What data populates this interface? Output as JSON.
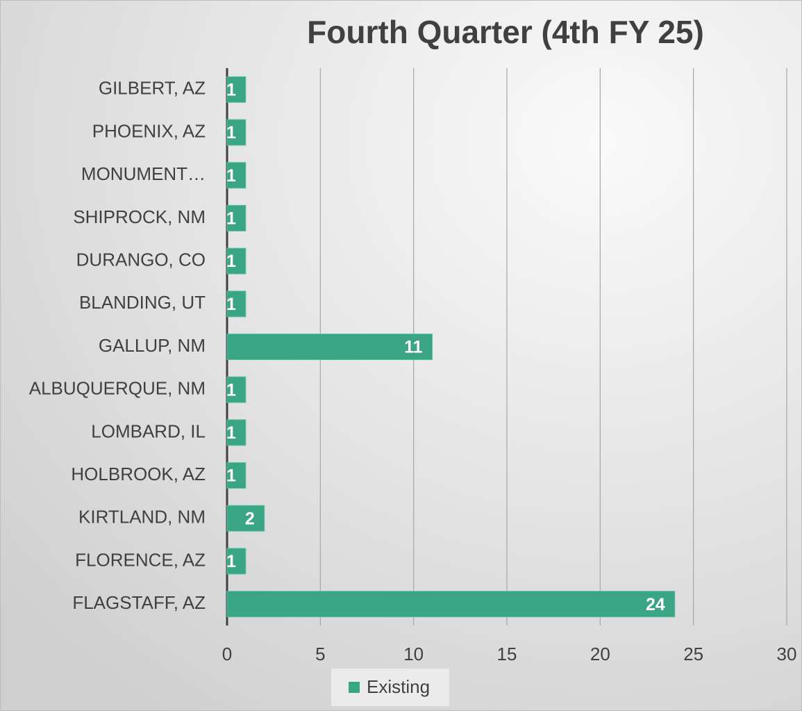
{
  "chart_data": {
    "type": "hbar",
    "title": "Fourth Quarter (4th FY 25)",
    "categories": [
      "GILBERT, AZ",
      "PHOENIX, AZ",
      "MONUMENT…",
      "SHIPROCK, NM",
      "DURANGO, CO",
      "BLANDING, UT",
      "GALLUP, NM",
      "ALBUQUERQUE, NM",
      "LOMBARD, IL",
      "HOLBROOK, AZ",
      "KIRTLAND, NM",
      "FLORENCE, AZ",
      "FLAGSTAFF, AZ"
    ],
    "series": [
      {
        "name": "Existing",
        "color": "#3aa584",
        "values": [
          1,
          1,
          1,
          1,
          1,
          1,
          11,
          1,
          1,
          1,
          2,
          1,
          24
        ]
      }
    ],
    "xlim": [
      0,
      30
    ],
    "xticks": [
      0,
      5,
      10,
      15,
      20,
      25,
      30
    ],
    "grid": true,
    "legend": "bottom"
  }
}
